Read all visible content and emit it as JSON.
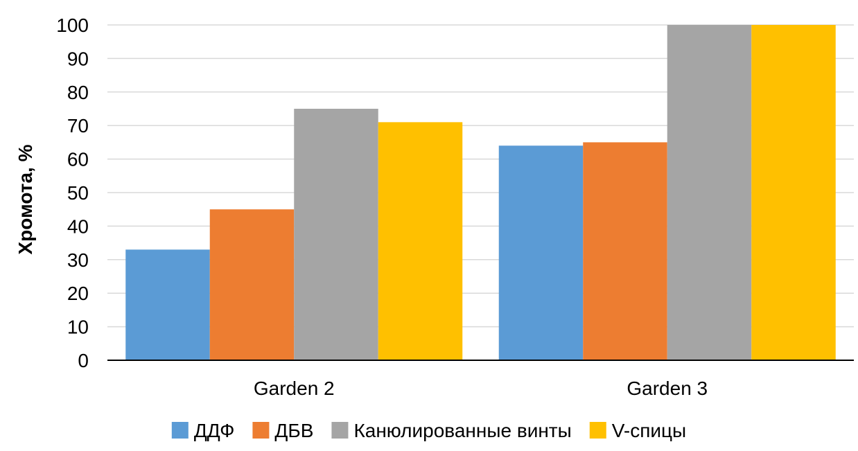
{
  "chart_data": {
    "type": "bar",
    "title": "",
    "xlabel": "",
    "ylabel": "Хромота, %",
    "categories": [
      "Garden 2",
      "Garden 3"
    ],
    "series": [
      {
        "name": "ДДФ",
        "values": [
          33,
          64
        ],
        "color": "#5B9BD5"
      },
      {
        "name": "ДБВ",
        "values": [
          45,
          65
        ],
        "color": "#ED7D31"
      },
      {
        "name": "Канюлированные винты",
        "values": [
          75,
          100
        ],
        "color": "#A5A5A5"
      },
      {
        "name": "V-спицы",
        "values": [
          71,
          100
        ],
        "color": "#FFC000"
      }
    ],
    "ylim": [
      0,
      100
    ],
    "yticks": [
      0,
      10,
      20,
      30,
      40,
      50,
      60,
      70,
      80,
      90,
      100
    ],
    "grid": true,
    "legend_position": "bottom"
  }
}
